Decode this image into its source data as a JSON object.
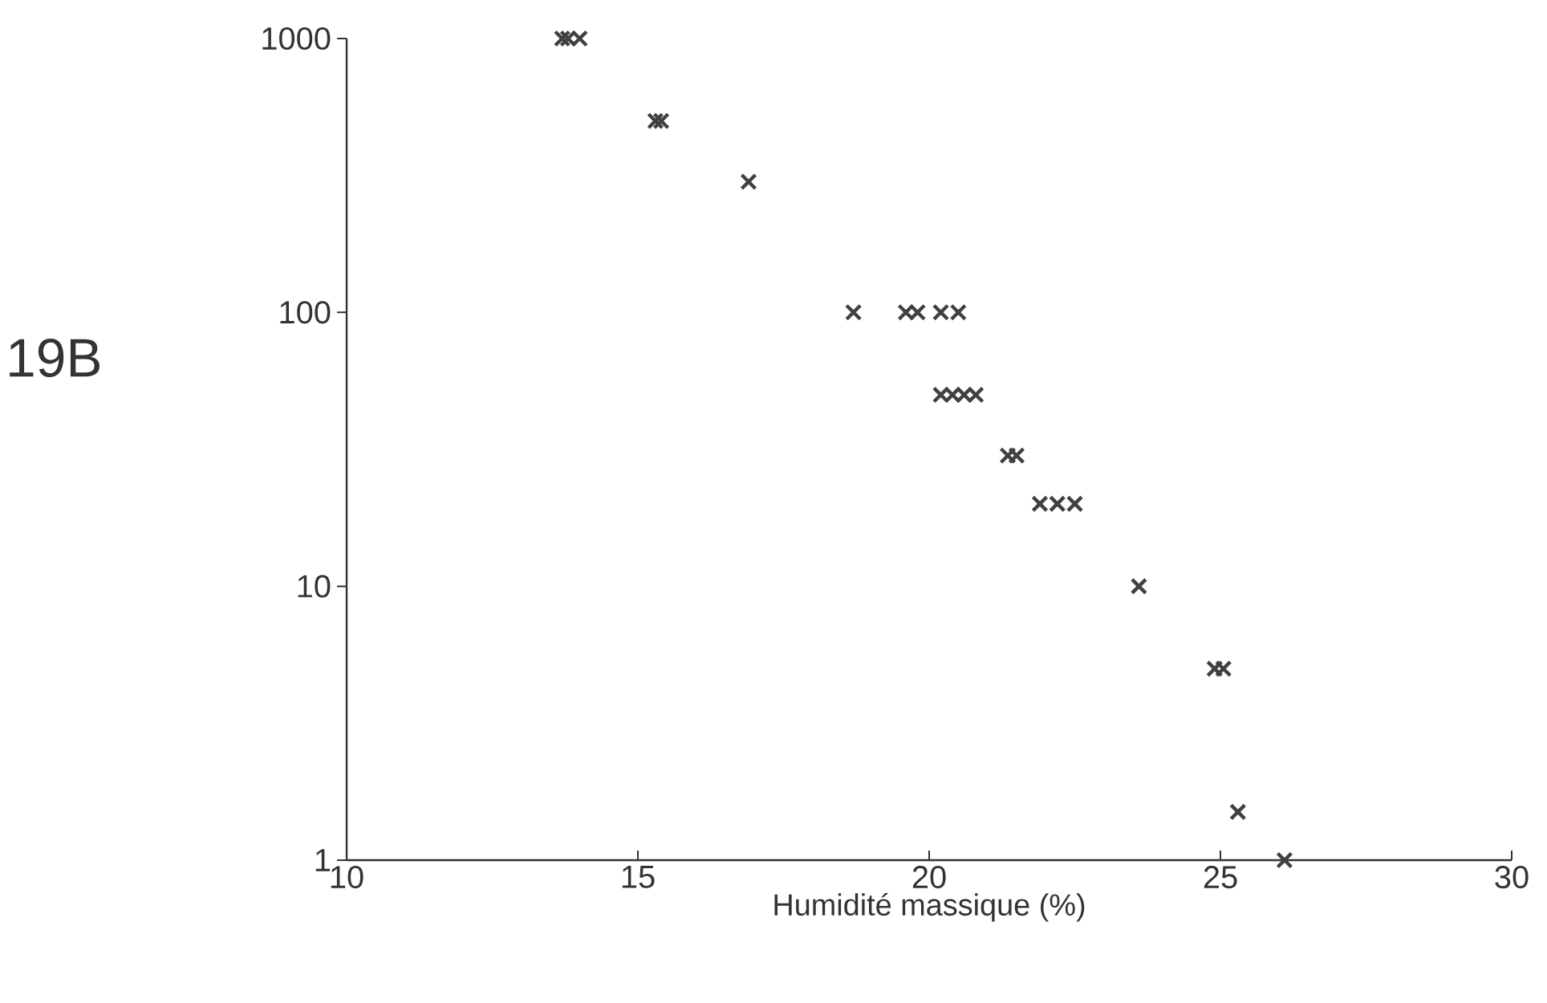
{
  "chart_data": {
    "type": "scatter",
    "xlabel": "Humidité massique (%)",
    "annotations": [
      "19B"
    ],
    "x": [
      13.7,
      13.8,
      14.0,
      15.3,
      15.4,
      16.9,
      18.7,
      19.6,
      19.8,
      20.2,
      20.5,
      20.2,
      20.4,
      20.6,
      20.8,
      21.35,
      21.5,
      21.9,
      22.2,
      22.5,
      23.6,
      24.9,
      25.05,
      25.3,
      26.1
    ],
    "values": [
      1000,
      1000,
      1000,
      500,
      500,
      300,
      100,
      100,
      100,
      100,
      100,
      50,
      50,
      50,
      50,
      30,
      30,
      20,
      20,
      20,
      10,
      5,
      5,
      1.5,
      1
    ],
    "color": "#404040",
    "marker": "cross",
    "log": "y",
    "xlim": [
      10,
      30
    ],
    "xticks": [
      10,
      15,
      20,
      25,
      30
    ],
    "ylim": [
      1,
      1000
    ],
    "yticks": [
      1,
      10,
      100,
      1000
    ]
  }
}
